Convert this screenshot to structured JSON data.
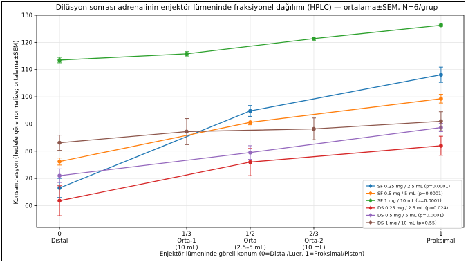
{
  "chart_data": {
    "type": "line",
    "title": "Dilüsyon sonrası adrenalinin enjektör lümeninde fraksiyonel dağılımı (HPLC) — ortalama±SEM, N=6/grup",
    "xlabel": "Enjektör lümeninde göreli konum (0=Distal/Luer, 1=Proksimal/Piston)",
    "ylabel": "Konsantrasyon (hedefe göre normalize; ortalama±SEM)",
    "xlim": [
      -0.06,
      1.06
    ],
    "ylim": [
      52,
      130
    ],
    "yticks": [
      60,
      70,
      80,
      90,
      100,
      110,
      120,
      130
    ],
    "xticks": [
      {
        "x": 0,
        "lines": [
          "0",
          "Distal"
        ]
      },
      {
        "x": 0.3333,
        "lines": [
          "1/3",
          "Orta-1",
          "(10 mL)"
        ]
      },
      {
        "x": 0.5,
        "lines": [
          "1/2",
          "Orta",
          "(2.5–5 mL)"
        ]
      },
      {
        "x": 0.6667,
        "lines": [
          "2/3",
          "Orta-2",
          "(10 mL)"
        ]
      },
      {
        "x": 1,
        "lines": [
          "1",
          "Proksimal"
        ]
      }
    ],
    "grid": true,
    "legend_position": "lower-right",
    "series": [
      {
        "name": "SF 0.25 mg / 2.5 mL (p=0.0001)",
        "color": "#1f77b4",
        "x": [
          0,
          0.5,
          1
        ],
        "y": [
          66.5,
          94.8,
          108.1
        ],
        "err": [
          3.5,
          2.0,
          2.8
        ]
      },
      {
        "name": "SF 0.5 mg / 5 mL (p=0.0001)",
        "color": "#ff7f0e",
        "x": [
          0,
          0.5,
          1
        ],
        "y": [
          76.2,
          90.6,
          99.3
        ],
        "err": [
          1.3,
          0.9,
          1.6
        ]
      },
      {
        "name": "SF 1 mg / 10 mL (p=0.0001)",
        "color": "#2ca02c",
        "x": [
          0,
          0.3333,
          0.6667,
          1
        ],
        "y": [
          113.5,
          115.8,
          121.4,
          126.3
        ],
        "err": [
          1.0,
          0.8,
          0.6,
          0.4
        ]
      },
      {
        "name": "DS 0.25 mg / 2.5 mL (p=0.024)",
        "color": "#d62728",
        "x": [
          0,
          0.5,
          1
        ],
        "y": [
          61.8,
          76.0,
          82.0
        ],
        "err": [
          5.5,
          5.0,
          3.5
        ]
      },
      {
        "name": "DS 0.5 mg / 5 mL (p=0.0001)",
        "color": "#9467bd",
        "x": [
          0,
          0.5,
          1
        ],
        "y": [
          71.0,
          79.5,
          88.7
        ],
        "err": [
          2.5,
          2.5,
          1.5
        ]
      },
      {
        "name": "DS 1 mg / 10 mL (p=0.55)",
        "color": "#8c564b",
        "x": [
          0,
          0.3333,
          0.6667,
          1
        ],
        "y": [
          83.1,
          87.2,
          88.2,
          91.0
        ],
        "err": [
          2.8,
          4.8,
          4.0,
          3.5
        ]
      }
    ]
  }
}
